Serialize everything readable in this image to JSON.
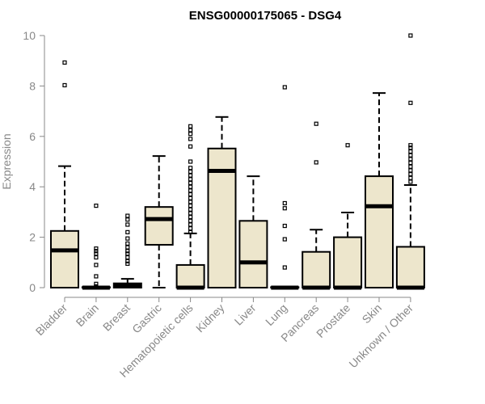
{
  "chart_data": {
    "type": "boxplot",
    "title": "ENSG00000175065 - DSG4",
    "xlabel": "",
    "ylabel": "Expression",
    "ylim": [
      0,
      10
    ],
    "yticks": [
      0,
      2,
      4,
      6,
      8,
      10
    ],
    "box_color": "#ede6cc",
    "categories": [
      "Bladder",
      "Brain",
      "Breast",
      "Gastric",
      "Hematopoietic cells",
      "Kidney",
      "Liver",
      "Lung",
      "Pancreas",
      "Prostate",
      "Skin",
      "Unknown / Other"
    ],
    "boxes": [
      {
        "category": "Bladder",
        "whisker_low": 0,
        "q1": 0,
        "median": 1.48,
        "q3": 2.25,
        "whisker_high": 4.82,
        "outliers": [
          8.03,
          8.93
        ]
      },
      {
        "category": "Brain",
        "whisker_low": 0,
        "q1": 0,
        "median": 0,
        "q3": 0.02,
        "whisker_high": 0.02,
        "outliers": [
          0.05,
          0.15,
          0.45,
          0.9,
          1.2,
          1.35,
          1.45,
          1.55,
          3.25
        ]
      },
      {
        "category": "Breast",
        "whisker_low": 0,
        "q1": 0,
        "median": 0.07,
        "q3": 0.17,
        "whisker_high": 0.35,
        "outliers": [
          0.95,
          1.05,
          1.2,
          1.35,
          1.45,
          1.6,
          1.75,
          1.95,
          2.2,
          2.5,
          2.7,
          2.85
        ]
      },
      {
        "category": "Gastric",
        "whisker_low": 0,
        "q1": 1.7,
        "median": 2.72,
        "q3": 3.2,
        "whisker_high": 5.22,
        "outliers": []
      },
      {
        "category": "Hematopoietic cells",
        "whisker_low": 0,
        "q1": 0,
        "median": 0,
        "q3": 0.9,
        "whisker_high": 2.15,
        "outliers": [
          2.2,
          2.35,
          2.5,
          2.65,
          2.8,
          2.95,
          3.1,
          3.25,
          3.4,
          3.55,
          3.7,
          3.85,
          4.0,
          4.15,
          4.3,
          4.45,
          4.6,
          4.75,
          5.0,
          5.6,
          5.9,
          6.1,
          6.25,
          6.4
        ]
      },
      {
        "category": "Kidney",
        "whisker_low": 0,
        "q1": 0,
        "median": 4.63,
        "q3": 5.52,
        "whisker_high": 6.77,
        "outliers": []
      },
      {
        "category": "Liver",
        "whisker_low": 0,
        "q1": 0,
        "median": 1.0,
        "q3": 2.65,
        "whisker_high": 4.42,
        "outliers": []
      },
      {
        "category": "Lung",
        "whisker_low": 0,
        "q1": 0,
        "median": 0,
        "q3": 0.02,
        "whisker_high": 0.02,
        "outliers": [
          0.8,
          1.92,
          2.45,
          3.15,
          3.35,
          7.95
        ]
      },
      {
        "category": "Pancreas",
        "whisker_low": 0,
        "q1": 0,
        "median": 0,
        "q3": 1.42,
        "whisker_high": 2.3,
        "outliers": [
          4.97,
          6.5
        ]
      },
      {
        "category": "Prostate",
        "whisker_low": 0,
        "q1": 0,
        "median": 0,
        "q3": 2.0,
        "whisker_high": 2.98,
        "outliers": [
          5.65
        ]
      },
      {
        "category": "Skin",
        "whisker_low": 0,
        "q1": 0,
        "median": 3.23,
        "q3": 4.42,
        "whisker_high": 7.72,
        "outliers": []
      },
      {
        "category": "Unknown / Other",
        "whisker_low": 0,
        "q1": 0,
        "median": 0,
        "q3": 1.62,
        "whisker_high": 4.07,
        "outliers": [
          4.2,
          4.35,
          4.5,
          4.65,
          4.8,
          4.95,
          5.1,
          5.25,
          5.4,
          5.55,
          5.65,
          7.33,
          10.0
        ]
      }
    ]
  }
}
